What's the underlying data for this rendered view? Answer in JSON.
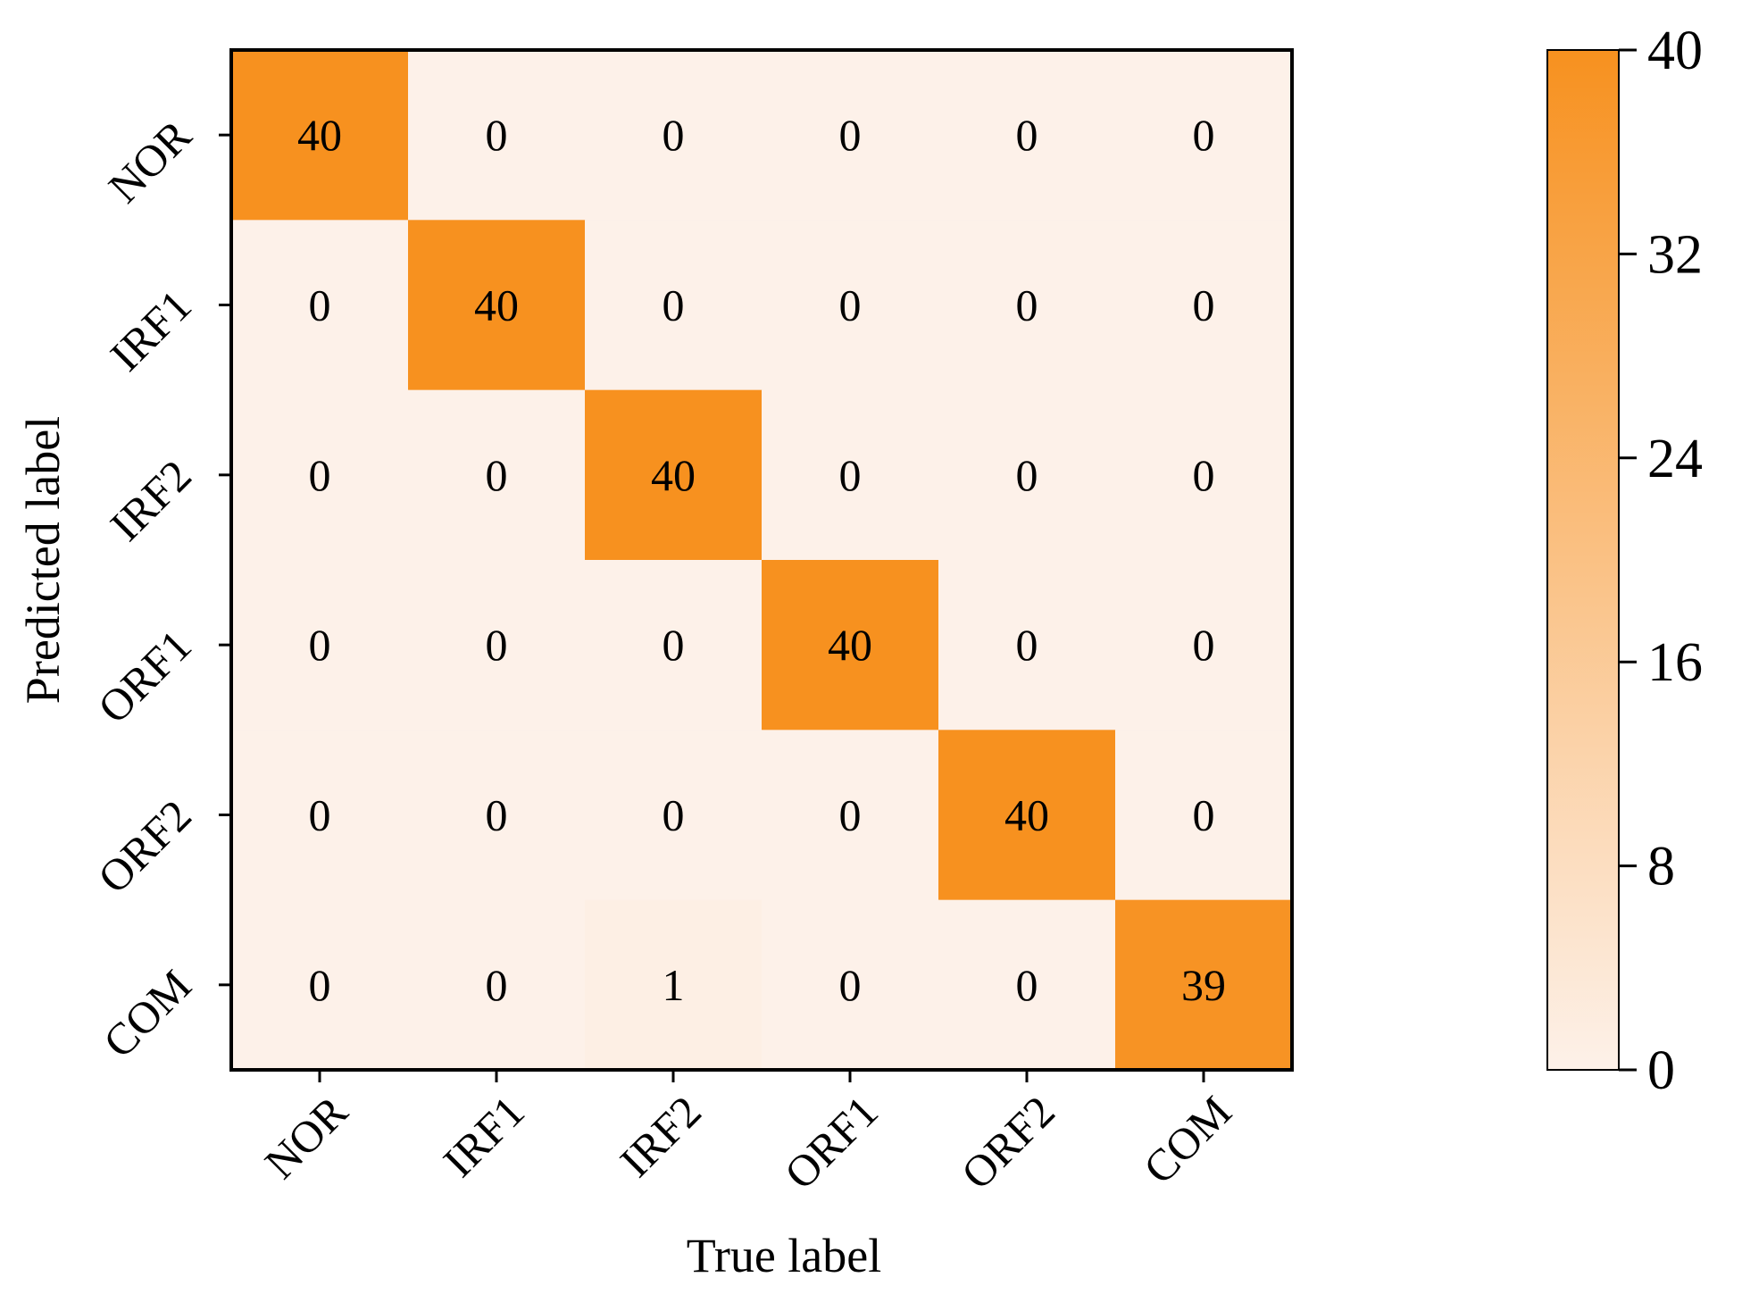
{
  "chart_data": {
    "type": "heatmap",
    "title": "",
    "xlabel": "True label",
    "ylabel": "Predicted label",
    "x_categories": [
      "NOR",
      "IRF1",
      "IRF2",
      "ORF1",
      "ORF2",
      "COM"
    ],
    "y_categories": [
      "NOR",
      "IRF1",
      "IRF2",
      "ORF1",
      "ORF2",
      "COM"
    ],
    "values": [
      [
        40,
        0,
        0,
        0,
        0,
        0
      ],
      [
        0,
        40,
        0,
        0,
        0,
        0
      ],
      [
        0,
        0,
        40,
        0,
        0,
        0
      ],
      [
        0,
        0,
        0,
        40,
        0,
        0
      ],
      [
        0,
        0,
        0,
        0,
        40,
        0
      ],
      [
        0,
        0,
        1,
        0,
        0,
        39
      ]
    ],
    "colorbar": {
      "min": 0,
      "max": 40,
      "ticks": [
        0,
        8,
        16,
        24,
        32,
        40
      ],
      "color_low": "#fdf1e9",
      "color_high": "#f7911f"
    },
    "grid": false,
    "legend": "colorbar-right"
  }
}
